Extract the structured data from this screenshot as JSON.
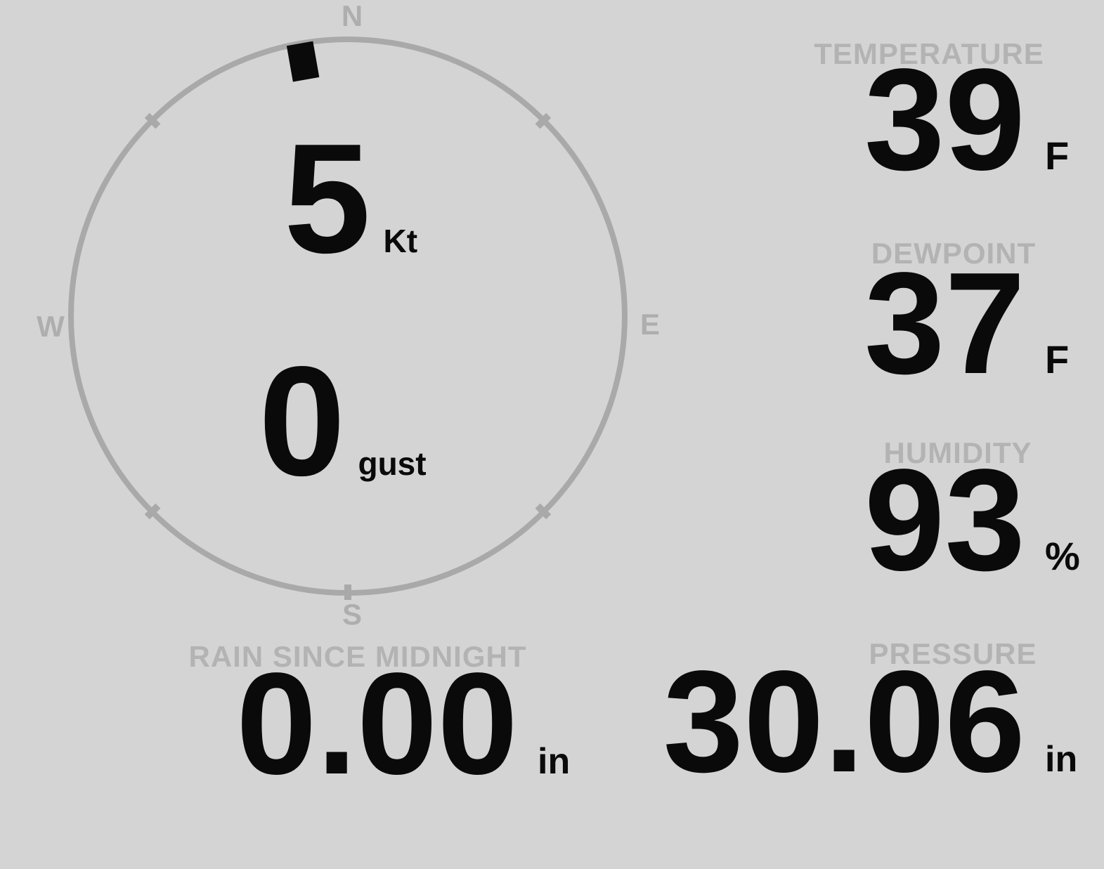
{
  "theme": {
    "background": "#d4d4d4",
    "label_gray": "#b3b3b3",
    "compass_gray": "#a9a9a9",
    "cardinal_gray": "#aeaeae",
    "value_black": "#0a0a0a"
  },
  "compass": {
    "cardinals": {
      "north": "N",
      "east": "E",
      "south": "S",
      "west": "W"
    },
    "wind_direction_deg": 350,
    "speed": {
      "value": "5",
      "unit": "Kt"
    },
    "gust": {
      "value": "0",
      "unit": "gust"
    }
  },
  "readings": {
    "temperature": {
      "label": "TEMPERATURE",
      "value": "39",
      "unit": "F"
    },
    "dewpoint": {
      "label": "DEWPOINT",
      "value": "37",
      "unit": "F"
    },
    "humidity": {
      "label": "HUMIDITY",
      "value": "93",
      "unit": "%"
    },
    "rain_since_midnight": {
      "label": "RAIN SINCE MIDNIGHT",
      "value": "0.00",
      "unit": "in"
    },
    "pressure": {
      "label": "PRESSURE",
      "value": "30.06",
      "unit": "in"
    }
  }
}
